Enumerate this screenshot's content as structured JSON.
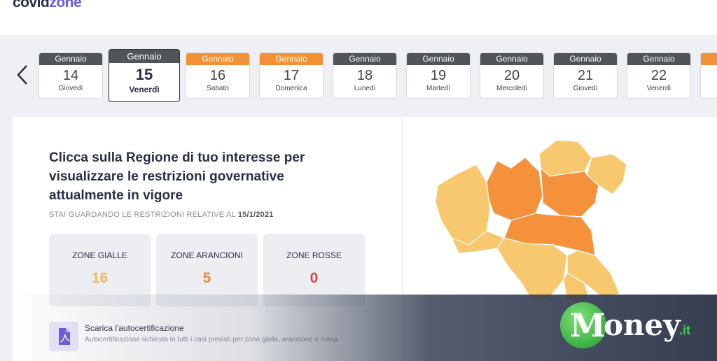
{
  "header": {
    "logo_part1": "covid",
    "logo_part2": "zone"
  },
  "calendar": {
    "days": [
      {
        "month": "Gennaio",
        "day": "14",
        "weekday": "Giovedì",
        "color": "dark"
      },
      {
        "month": "Gennaio",
        "day": "15",
        "weekday": "Venerdì",
        "color": "dark",
        "selected": true
      },
      {
        "month": "Gennaio",
        "day": "16",
        "weekday": "Sabato",
        "color": "orange"
      },
      {
        "month": "Gennaio",
        "day": "17",
        "weekday": "Domenica",
        "color": "orange"
      },
      {
        "month": "Gennaio",
        "day": "18",
        "weekday": "Lunedì",
        "color": "dark"
      },
      {
        "month": "Gennaio",
        "day": "19",
        "weekday": "Martedì",
        "color": "dark"
      },
      {
        "month": "Gennaio",
        "day": "20",
        "weekday": "Mercoledì",
        "color": "dark"
      },
      {
        "month": "Gennaio",
        "day": "21",
        "weekday": "Giovedì",
        "color": "dark"
      },
      {
        "month": "Gennaio",
        "day": "22",
        "weekday": "Venerdì",
        "color": "dark"
      }
    ]
  },
  "main": {
    "headline": "Clicca sulla Regione di tuo interesse per visualizzare le restrizioni governative attualmente in vigore",
    "subline_prefix": "STAI GUARDANDO LE RESTRIZIONI RELATIVE AL",
    "subline_date": "15/1/2021",
    "zones": [
      {
        "label": "ZONE GIALLE",
        "value": "16",
        "color": "#f6b760"
      },
      {
        "label": "ZONE ARANCIONI",
        "value": "5",
        "color": "#f08a2e"
      },
      {
        "label": "ZONE ROSSE",
        "value": "0",
        "color": "#e04848"
      }
    ],
    "download_title": "Scarica l'autocertificazione",
    "download_desc": "Autocertificazione richiesta in tutti i casi previsti per zona gialla, arancione e rossa"
  },
  "map": {
    "yellow": "#f8c86e",
    "orange": "#f5913a",
    "border": "#ffffff"
  },
  "watermark": {
    "brand": "oney",
    "initial": "M",
    "tld": ".it"
  }
}
